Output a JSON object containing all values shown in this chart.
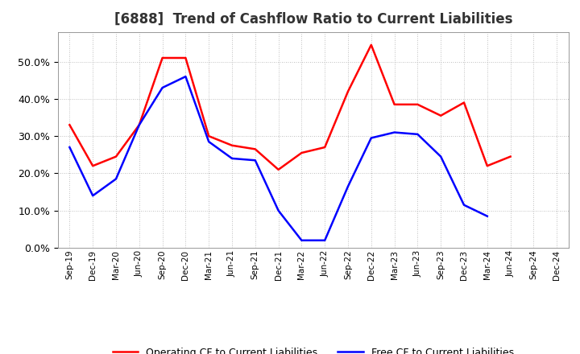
{
  "title": "[6888]  Trend of Cashflow Ratio to Current Liabilities",
  "x_labels": [
    "Sep-19",
    "Dec-19",
    "Mar-20",
    "Jun-20",
    "Sep-20",
    "Dec-20",
    "Mar-21",
    "Jun-21",
    "Sep-21",
    "Dec-21",
    "Mar-22",
    "Jun-22",
    "Sep-22",
    "Dec-22",
    "Mar-23",
    "Jun-23",
    "Sep-23",
    "Dec-23",
    "Mar-24",
    "Jun-24",
    "Sep-24",
    "Dec-24"
  ],
  "operating_cf": [
    0.33,
    0.22,
    0.245,
    0.33,
    0.51,
    0.51,
    0.3,
    0.275,
    0.265,
    0.21,
    0.255,
    0.27,
    0.42,
    0.545,
    0.385,
    0.385,
    0.355,
    0.39,
    0.22,
    0.245,
    null,
    null
  ],
  "free_cf": [
    0.27,
    0.14,
    0.185,
    0.33,
    0.43,
    0.46,
    0.285,
    0.24,
    0.235,
    0.1,
    0.02,
    0.02,
    0.165,
    0.295,
    0.31,
    0.305,
    0.245,
    0.115,
    0.085,
    null,
    null,
    null
  ],
  "ylim": [
    0.0,
    0.58
  ],
  "yticks": [
    0.0,
    0.1,
    0.2,
    0.3,
    0.4,
    0.5
  ],
  "operating_color": "#ff0000",
  "free_color": "#0000ff",
  "background_color": "#ffffff",
  "grid_color": "#aaaaaa",
  "title_fontsize": 12,
  "legend_op": "Operating CF to Current Liabilities",
  "legend_free": "Free CF to Current Liabilities"
}
